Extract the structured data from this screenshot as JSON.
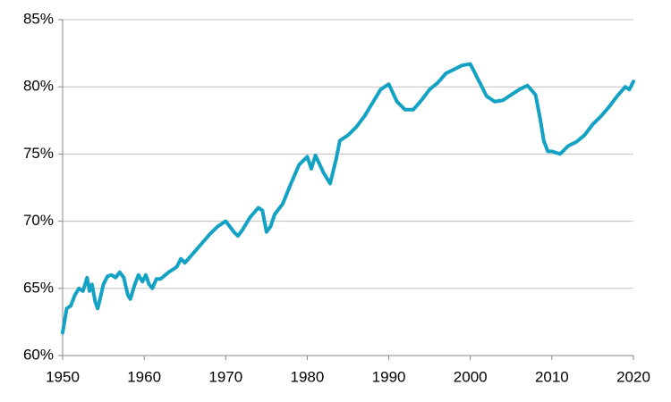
{
  "chart_data": {
    "type": "line",
    "x": [
      1950,
      1950.5,
      1951,
      1951.5,
      1952,
      1952.5,
      1953,
      1953.3,
      1953.6,
      1954,
      1954.3,
      1954.7,
      1955,
      1955.5,
      1956,
      1956.5,
      1957,
      1957.5,
      1958,
      1958.3,
      1958.8,
      1959.3,
      1959.8,
      1960.2,
      1960.6,
      1961,
      1961.5,
      1962,
      1963,
      1964,
      1964.5,
      1965,
      1966,
      1967,
      1968,
      1969,
      1970,
      1971,
      1971.5,
      1972,
      1973,
      1974,
      1974.5,
      1975,
      1975.5,
      1976,
      1977,
      1978,
      1979,
      1980,
      1980.5,
      1981,
      1982,
      1982.8,
      1983.5,
      1984,
      1985,
      1986,
      1987,
      1988,
      1989,
      1990,
      1991,
      1992,
      1993,
      1994,
      1995,
      1996,
      1997,
      1998,
      1999,
      2000,
      2001,
      2002,
      2003,
      2004,
      2005,
      2006,
      2007,
      2008,
      2008.6,
      2009,
      2009.5,
      2010,
      2011,
      2012,
      2013,
      2014,
      2015,
      2016,
      2017,
      2018,
      2019,
      2019.5,
      2020
    ],
    "series": [
      {
        "color": "#13a2c4",
        "values": [
          61.7,
          63.5,
          63.7,
          64.5,
          65.0,
          64.8,
          65.8,
          64.8,
          65.3,
          64.0,
          63.5,
          64.5,
          65.3,
          65.9,
          66.0,
          65.8,
          66.2,
          65.8,
          64.5,
          64.2,
          65.2,
          66.0,
          65.5,
          66.0,
          65.3,
          65.0,
          65.7,
          65.7,
          66.2,
          66.6,
          67.2,
          66.9,
          67.6,
          68.3,
          69.0,
          69.6,
          70.0,
          69.2,
          68.9,
          69.3,
          70.3,
          71.0,
          70.8,
          69.2,
          69.6,
          70.5,
          71.3,
          72.8,
          74.2,
          74.8,
          73.9,
          74.9,
          73.6,
          72.8,
          74.5,
          76.0,
          76.4,
          77.0,
          77.8,
          78.8,
          79.8,
          80.2,
          78.9,
          78.3,
          78.3,
          79.0,
          79.8,
          80.3,
          81.0,
          81.3,
          81.6,
          81.7,
          80.5,
          79.3,
          78.9,
          79.0,
          79.4,
          79.8,
          80.1,
          79.4,
          77.5,
          76.0,
          75.2,
          75.2,
          75.0,
          75.6,
          75.9,
          76.4,
          77.2,
          77.8,
          78.5,
          79.3,
          80.0,
          79.8,
          80.4
        ]
      }
    ],
    "xlim": [
      1950,
      2020
    ],
    "xticks": [
      1950,
      1960,
      1970,
      1980,
      1990,
      2000,
      2010,
      2020
    ],
    "ylim": [
      60,
      85
    ],
    "yticks": [
      {
        "value": 60,
        "label": "60%"
      },
      {
        "value": 65,
        "label": "65%"
      },
      {
        "value": 70,
        "label": "70%"
      },
      {
        "value": 75,
        "label": "75%"
      },
      {
        "value": 80,
        "label": "80%"
      },
      {
        "value": 85,
        "label": "85%"
      }
    ],
    "grid": true
  }
}
